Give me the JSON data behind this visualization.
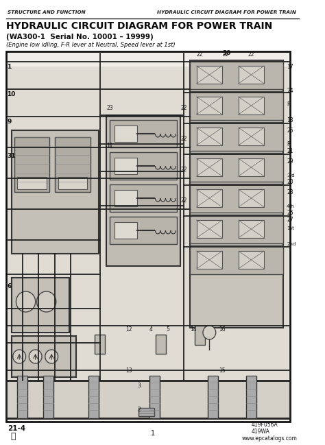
{
  "page_bg": "#ffffff",
  "header_left": "STRUCTURE AND FUNCTION",
  "header_right": "HYDRAULIC CIRCUIT DIAGRAM FOR POWER TRAIN",
  "title_line1": "HYDRAULIC CIRCUIT DIAGRAM FOR POWER TRAIN",
  "title_line2": "(WA300-1  Serial No. 10001 – 19999)",
  "title_line3": "(Engine low idling, F-R lever at Neutral, Speed lever at 1st)",
  "footer_left_top": "21-4",
  "footer_center": "1",
  "footer_ref1": "419F056A",
  "footer_ref2": "419WA",
  "footer_url": "www.epcatalogs.com",
  "diagram_border": "#1a1a1a",
  "line_color": "#1a1a1a",
  "header_line_color": "#1a1a1a",
  "gray_dark": "#888888",
  "gray_mid": "#aaaaaa",
  "gray_light": "#cccccc",
  "gray_bg": "#b8b4ac",
  "pipe_color": "#222222"
}
